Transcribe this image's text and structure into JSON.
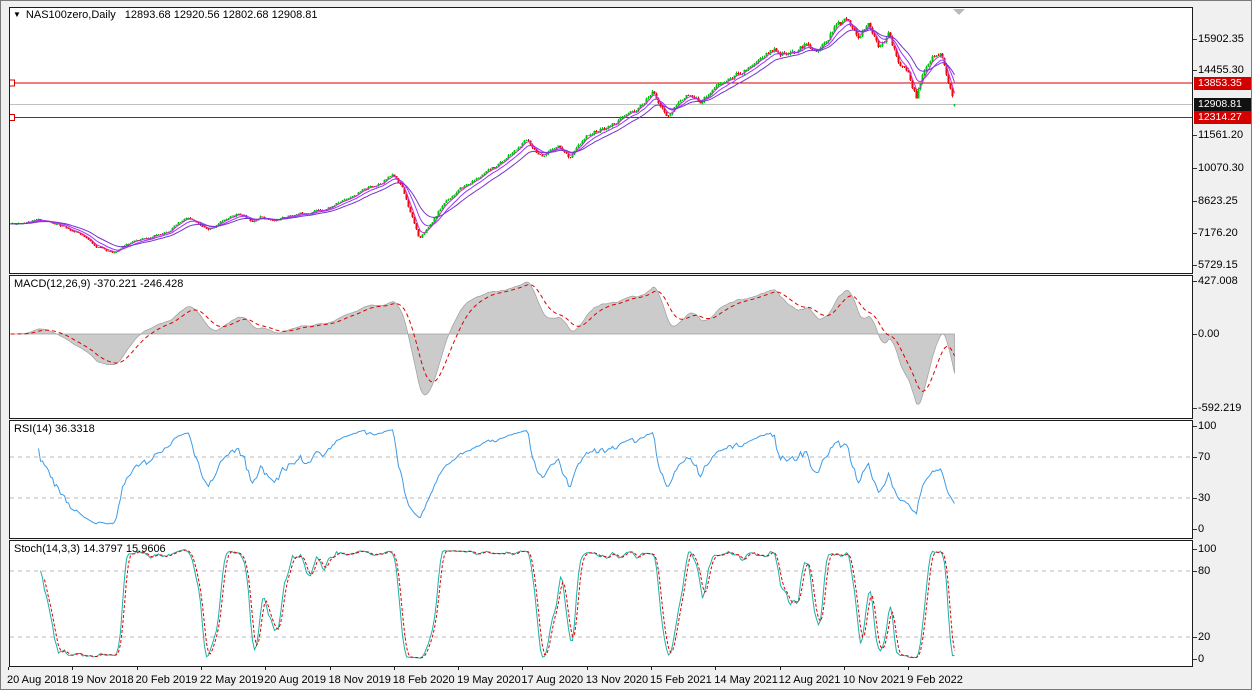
{
  "main_chart": {
    "symbol_label": "NAS100zero,Daily",
    "ohlc_label": "12893.68 12920.56 12802.68 12908.81",
    "y_ticks": [
      "15902.35",
      "14455.30",
      "11561.20",
      "10070.30",
      "8623.25",
      "7176.20",
      "5729.15"
    ],
    "badges": {
      "resistance": "13853.35",
      "current": "12908.81",
      "support": "12314.27"
    }
  },
  "macd_panel": {
    "label": "MACD(12,26,9) -370.221 -246.428",
    "y_ticks": [
      "427.008",
      "0.00",
      "-592.219"
    ]
  },
  "rsi_panel": {
    "label": "RSI(14) 36.3318",
    "y_ticks": [
      "100",
      "70",
      "30",
      "0"
    ]
  },
  "stoch_panel": {
    "label": "Stoch(14,3,3) 14.3797 15.9606",
    "y_ticks": [
      "100",
      "80",
      "20",
      "0"
    ]
  },
  "chart_data": {
    "type": "candlestick",
    "symbol": "NAS100zero",
    "timeframe": "Daily",
    "quote": {
      "open": 12893.68,
      "high": 12920.56,
      "low": 12802.68,
      "close": 12908.81
    },
    "price_axis": {
      "ticks": [
        15902.35,
        14455.3,
        11561.2,
        10070.3,
        8623.25,
        7176.2,
        5729.15
      ],
      "current_price": 12908.81,
      "horizontal_levels": [
        13853.35,
        12314.27
      ]
    },
    "x_labels": [
      "20 Aug 2018",
      "19 Nov 2018",
      "20 Feb 2019",
      "22 May 2019",
      "20 Aug 2019",
      "18 Nov 2019",
      "18 Feb 2020",
      "19 May 2020",
      "17 Aug 2020",
      "13 Nov 2020",
      "15 Feb 2021",
      "14 May 2021",
      "12 Aug 2021",
      "10 Nov 2021",
      "9 Feb 2022"
    ],
    "price_waypoints": [
      [
        9,
        7600
      ],
      [
        40,
        7770
      ],
      [
        58,
        7520
      ],
      [
        78,
        7140
      ],
      [
        95,
        6600
      ],
      [
        112,
        6310
      ],
      [
        128,
        6790
      ],
      [
        150,
        6990
      ],
      [
        170,
        7380
      ],
      [
        186,
        7870
      ],
      [
        199,
        7500
      ],
      [
        207,
        7290
      ],
      [
        222,
        7760
      ],
      [
        238,
        8070
      ],
      [
        250,
        7730
      ],
      [
        260,
        7940
      ],
      [
        272,
        7700
      ],
      [
        288,
        7970
      ],
      [
        308,
        8130
      ],
      [
        328,
        8320
      ],
      [
        352,
        8880
      ],
      [
        374,
        9330
      ],
      [
        392,
        9770
      ],
      [
        400,
        9340
      ],
      [
        408,
        8230
      ],
      [
        418,
        6940
      ],
      [
        430,
        7660
      ],
      [
        444,
        8610
      ],
      [
        462,
        9240
      ],
      [
        488,
        9930
      ],
      [
        508,
        10630
      ],
      [
        526,
        11320
      ],
      [
        542,
        10470
      ],
      [
        556,
        11130
      ],
      [
        568,
        10570
      ],
      [
        588,
        11590
      ],
      [
        608,
        11940
      ],
      [
        624,
        12370
      ],
      [
        638,
        12730
      ],
      [
        652,
        13490
      ],
      [
        666,
        12320
      ],
      [
        684,
        13330
      ],
      [
        698,
        13010
      ],
      [
        714,
        13680
      ],
      [
        728,
        14030
      ],
      [
        744,
        14480
      ],
      [
        758,
        14930
      ],
      [
        772,
        15380
      ],
      [
        788,
        15060
      ],
      [
        804,
        15580
      ],
      [
        818,
        15310
      ],
      [
        834,
        16390
      ],
      [
        847,
        16730
      ],
      [
        857,
        15870
      ],
      [
        867,
        16430
      ],
      [
        877,
        15570
      ],
      [
        887,
        16080
      ],
      [
        897,
        14820
      ],
      [
        907,
        14270
      ],
      [
        915,
        13220
      ],
      [
        923,
        14430
      ],
      [
        931,
        14940
      ],
      [
        939,
        15270
      ],
      [
        947,
        13940
      ],
      [
        953,
        12909
      ]
    ],
    "moving_averages": [
      {
        "period": 4
      },
      {
        "period": 9
      },
      {
        "period": 18
      }
    ],
    "indicators": {
      "macd": {
        "params": [
          12,
          26,
          9
        ],
        "main_value": -370.221,
        "signal_value": -246.428,
        "axis": [
          427.008,
          0.0,
          -592.219
        ]
      },
      "rsi": {
        "period": 14,
        "value": 36.3318,
        "levels": [
          70,
          30
        ],
        "axis": [
          100,
          70,
          30,
          0
        ]
      },
      "stoch": {
        "params": [
          14,
          3,
          3
        ],
        "k_value": 14.3797,
        "d_value": 15.9606,
        "levels": [
          80,
          20
        ],
        "axis": [
          100,
          80,
          20,
          0
        ]
      }
    },
    "colors": {
      "bull": "#00c510",
      "bear": "#ee0a0a",
      "ma": [
        "#cc33cc",
        "#9933ff",
        "#7733cc"
      ],
      "level_line": "#d40000",
      "current_line": "#c0c0c0",
      "badge_red_bg": "#d40000",
      "badge_black_bg": "#111111",
      "macd_area": "#cbcbcb",
      "macd_area_edge": "#9e9e9e",
      "macd_signal": "#e00000",
      "rsi_line": "#3d9be9",
      "stoch_k": "#19b3a6",
      "stoch_d": "#e00000",
      "grid_dash": "#b8b8b8",
      "shift_marker": "#b9b9b9"
    }
  }
}
